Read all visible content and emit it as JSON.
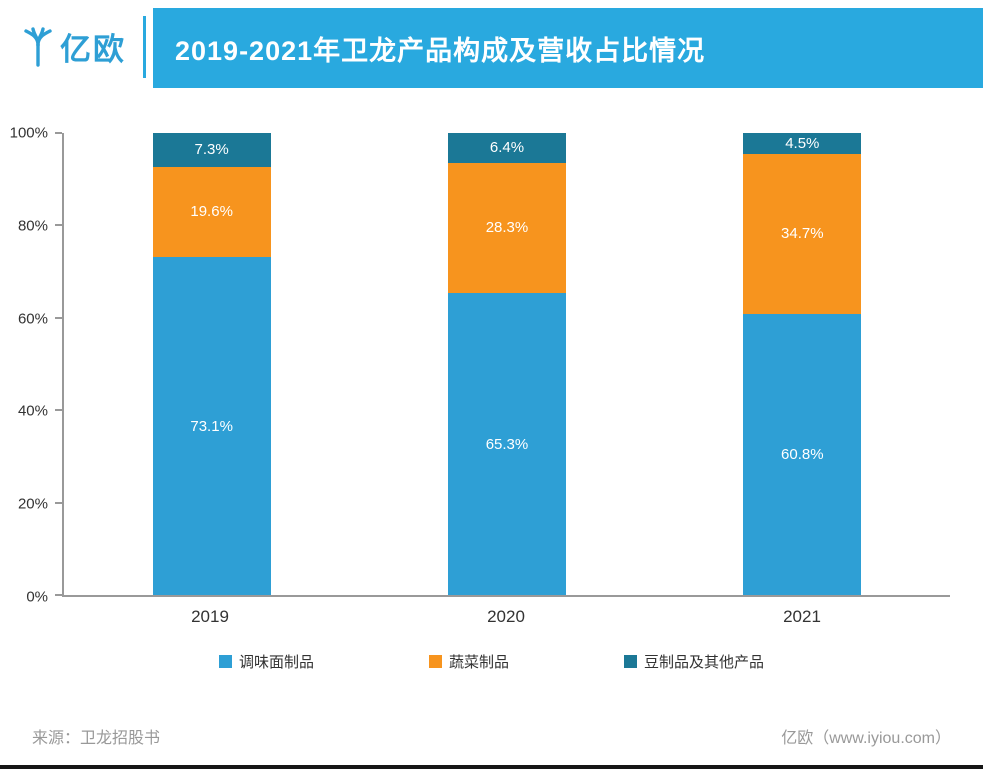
{
  "header": {
    "logo_text": "亿欧",
    "title": "2019-2021年卫龙产品构成及营收占比情况"
  },
  "colors": {
    "banner": "#29A9DF",
    "series_blue": "#2E9FD5",
    "series_orange": "#F7941E",
    "series_dark": "#1B7896",
    "axis": "#999999",
    "tick_text": "#333333",
    "footer_text": "#999999"
  },
  "chart_data": {
    "type": "bar",
    "stacked": true,
    "title": "2019-2021年卫龙产品构成及营收占比情况",
    "categories": [
      "2019",
      "2020",
      "2021"
    ],
    "series": [
      {
        "name": "调味面制品",
        "color": "#2E9FD5",
        "values": [
          73.1,
          65.3,
          60.8
        ]
      },
      {
        "name": "蔬菜制品",
        "color": "#F7941E",
        "values": [
          19.6,
          28.3,
          34.7
        ]
      },
      {
        "name": "豆制品及其他产品",
        "color": "#1B7896",
        "values": [
          7.3,
          6.4,
          4.5
        ]
      }
    ],
    "value_labels": [
      [
        "73.1%",
        "19.6%",
        "7.3%"
      ],
      [
        "65.3%",
        "28.3%",
        "6.4%"
      ],
      [
        "60.8%",
        "34.7%",
        "4.5%"
      ]
    ],
    "y_ticks": [
      "0%",
      "20%",
      "40%",
      "60%",
      "80%",
      "100%"
    ],
    "ylim": [
      0,
      100
    ],
    "grid": false,
    "legend_position": "bottom"
  },
  "footer": {
    "source": "来源：卫龙招股书",
    "credit": "亿欧（www.iyiou.com）"
  }
}
